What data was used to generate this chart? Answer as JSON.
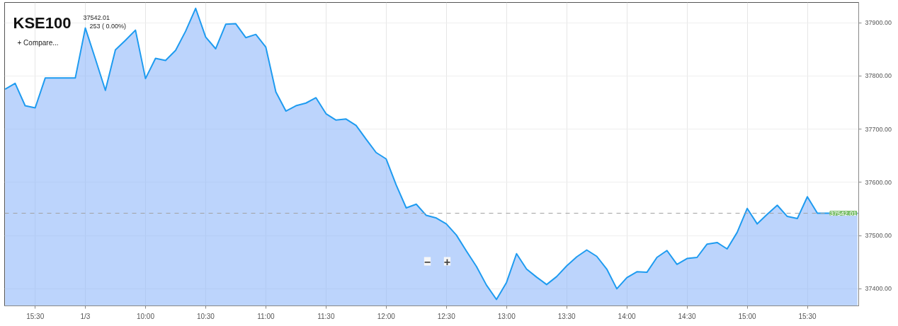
{
  "chart_data": {
    "type": "area",
    "title": "KSE100",
    "annotations": [
      "37542.01",
      "253 ( 0.00%)",
      "+ Compare...",
      "−",
      "+"
    ],
    "categories": [
      null,
      null,
      null,
      "15:30",
      null,
      null,
      null,
      null,
      "1/3",
      null,
      null,
      null,
      null,
      null,
      "10:00",
      null,
      null,
      null,
      null,
      null,
      "10:30",
      null,
      null,
      null,
      null,
      null,
      "11:00",
      null,
      null,
      null,
      null,
      null,
      "11:30",
      null,
      null,
      null,
      null,
      null,
      "12:00",
      null,
      null,
      null,
      null,
      null,
      "12:30",
      null,
      null,
      null,
      null,
      null,
      "13:00",
      null,
      null,
      null,
      null,
      null,
      "13:30",
      null,
      null,
      null,
      null,
      null,
      "14:00",
      null,
      null,
      null,
      null,
      null,
      "14:30",
      null,
      null,
      null,
      null,
      null,
      "15:00",
      null,
      null,
      null,
      null,
      null,
      "15:30",
      null,
      null,
      null,
      null,
      null
    ],
    "series": [
      {
        "color": "#1e9bf0",
        "values": [
          37775,
          37786,
          37744,
          37740,
          37796,
          37796,
          37796,
          37796,
          37890,
          37832,
          37773,
          37849,
          37867,
          37886,
          37795,
          37833,
          37829,
          37848,
          37884,
          37927,
          37873,
          37851,
          37897,
          37898,
          37872,
          37878,
          37854,
          37770,
          37734,
          37744,
          37749,
          37759,
          37729,
          37717,
          37719,
          37707,
          37681,
          37656,
          37644,
          37595,
          37552,
          37559,
          37538,
          37533,
          37522,
          37501,
          37471,
          37442,
          37407,
          37380,
          37412,
          37466,
          37437,
          37422,
          37408,
          37423,
          37443,
          37460,
          37473,
          37461,
          37437,
          37400,
          37421,
          37432,
          37431,
          37459,
          37472,
          37446,
          37457,
          37459,
          37484,
          37487,
          37475,
          37506,
          37551,
          37522,
          37540,
          37557,
          37536,
          37532,
          37573,
          37542,
          37542,
          37542,
          37542,
          37542
        ]
      }
    ],
    "ylim": [
      37368,
      37938
    ],
    "yticks": [
      {
        "value": 37400,
        "label": "37400.00"
      },
      {
        "value": 37500,
        "label": "37500.00"
      },
      {
        "value": 37600,
        "label": "37600.00"
      },
      {
        "value": 37700,
        "label": "37700.00"
      },
      {
        "value": 37800,
        "label": "37800.00"
      },
      {
        "value": 37900,
        "label": "37900.00"
      }
    ],
    "ref_lines": [
      {
        "axis": "y",
        "value": 37542.01,
        "label": "37542.01",
        "color": "#a0a0a0",
        "line_style": "dashed"
      }
    ],
    "grid": true,
    "marker": "none",
    "line_style": "solid"
  }
}
